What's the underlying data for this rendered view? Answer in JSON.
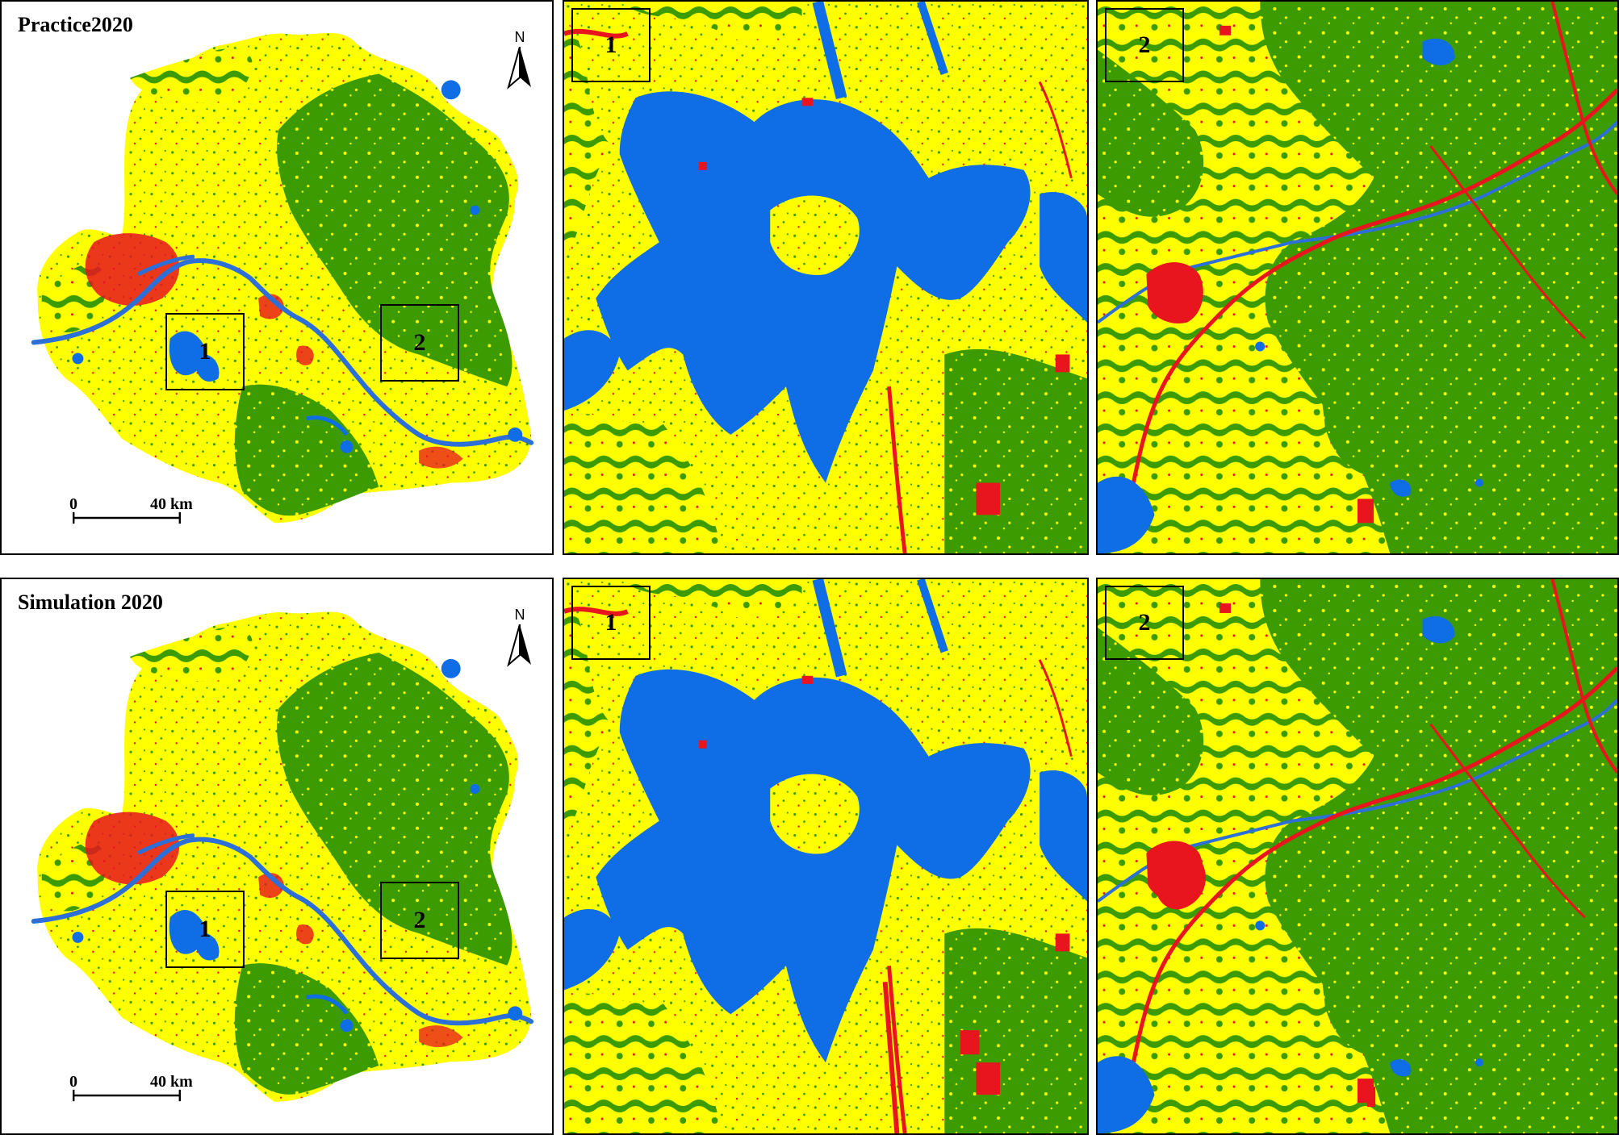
{
  "legend_colors": {
    "built_up": "#e8141e",
    "cropland": "#ffff00",
    "forest": "#3c9b00",
    "water": "#0f6ee6"
  },
  "north_arrow": {
    "letter": "N"
  },
  "scale_bar": {
    "zero": "0",
    "distance": "40 km"
  },
  "rows": [
    {
      "id": "practice",
      "title": "Practice2020",
      "zoom_labels": [
        "1",
        "2"
      ]
    },
    {
      "id": "simulation",
      "title": "Simulation 2020",
      "zoom_labels": [
        "1",
        "2"
      ]
    }
  ]
}
